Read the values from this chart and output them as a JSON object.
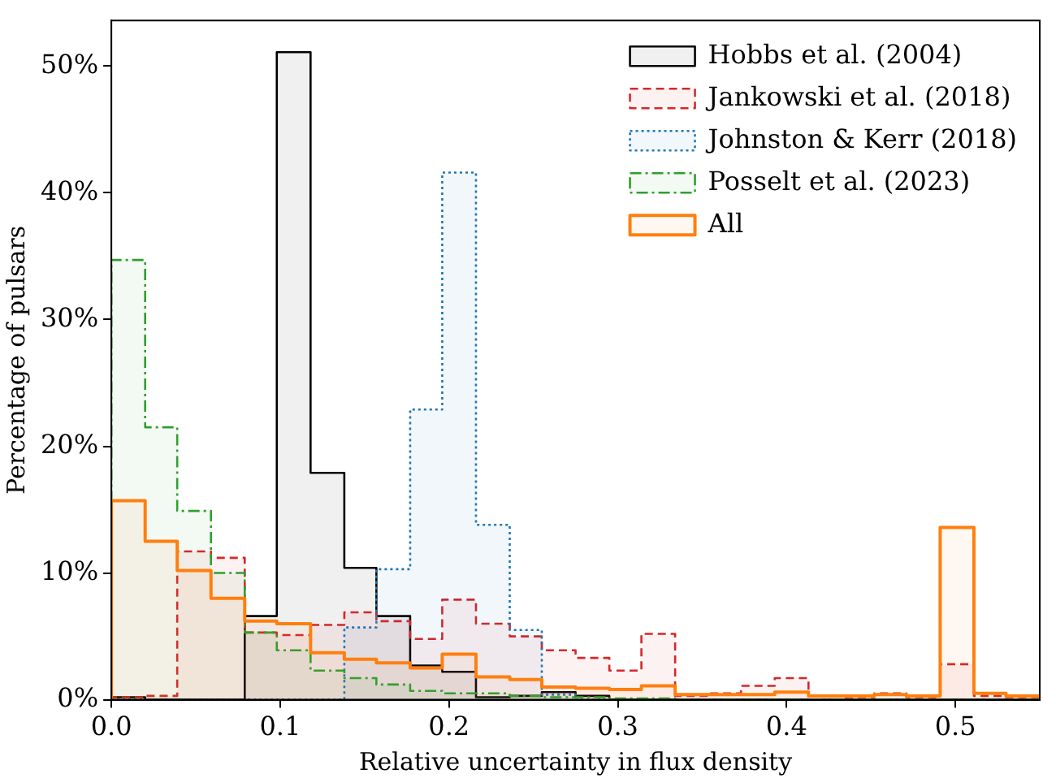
{
  "chart_data": {
    "type": "histogram",
    "xlabel": "Relative uncertainty in flux density",
    "ylabel": "Percentage of pulsars",
    "bins": [
      0,
      0.02,
      0.039,
      0.059,
      0.079,
      0.098,
      0.118,
      0.138,
      0.157,
      0.177,
      0.196,
      0.216,
      0.236,
      0.255,
      0.275,
      0.295,
      0.314,
      0.334,
      0.354,
      0.373,
      0.393,
      0.413,
      0.432,
      0.452,
      0.471,
      0.491,
      0.511,
      0.53,
      0.55
    ],
    "series": [
      {
        "name": "Hobbs et al. (2004)",
        "color": "#000000",
        "line_style": "solid",
        "values": [
          0.2,
          0,
          0,
          0,
          6.6,
          51.1,
          17.9,
          10.4,
          6.6,
          2.7,
          2.2,
          0.2,
          0.3,
          0.6,
          0.3,
          0,
          0,
          0,
          0,
          0,
          0,
          0,
          0,
          0,
          0,
          0,
          0,
          0
        ]
      },
      {
        "name": "Jankowski et al. (2018)",
        "color": "#d62728",
        "line_style": "dashed",
        "values": [
          0.2,
          0.3,
          11.7,
          11.2,
          5.3,
          5.1,
          5.9,
          6.9,
          6.2,
          4.8,
          7.9,
          6.0,
          5.0,
          3.9,
          3.3,
          2.3,
          5.2,
          0.3,
          0.5,
          1.1,
          1.7,
          0.3,
          0.2,
          0.5,
          0.2,
          2.8,
          0.3,
          0.2
        ]
      },
      {
        "name": "Johnston & Kerr (2018)",
        "color": "#1f77b4",
        "line_style": "dotted",
        "values": [
          0,
          0,
          0,
          0,
          0,
          0,
          0,
          5.7,
          10.3,
          22.9,
          41.6,
          13.8,
          5.5,
          0.4,
          0,
          0,
          0,
          0,
          0,
          0,
          0,
          0,
          0,
          0,
          0,
          0,
          0,
          0
        ]
      },
      {
        "name": "Posselt et al. (2023)",
        "color": "#2ca02c",
        "line_style": "dashdot",
        "values": [
          34.7,
          21.5,
          14.9,
          10.0,
          5.3,
          3.9,
          2.3,
          1.7,
          1.2,
          0.7,
          0.5,
          0.5,
          0.3,
          0.2,
          0.2,
          0.1,
          0.1,
          0,
          0,
          0,
          0,
          0,
          0,
          0,
          0,
          0,
          0,
          0
        ]
      },
      {
        "name": "All",
        "color": "#ff7f0e",
        "line_style": "solid",
        "values": [
          15.7,
          12.5,
          10.2,
          8.0,
          6.2,
          6.0,
          3.7,
          3.2,
          2.9,
          2.5,
          3.6,
          1.8,
          1.6,
          1.0,
          0.9,
          0.8,
          1.1,
          0.4,
          0.4,
          0.4,
          0.6,
          0.3,
          0.3,
          0.4,
          0.3,
          13.6,
          0.5,
          0.3
        ]
      }
    ],
    "xlim": [
      0,
      0.55
    ],
    "xticks": [
      {
        "value": 0,
        "label": "0.0"
      },
      0.1,
      0.2,
      0.3,
      0.4,
      0.5
    ],
    "ylim": [
      0,
      53.6
    ],
    "yticks": [
      {
        "value": 0,
        "label": "0%"
      },
      {
        "value": 10,
        "label": "10%"
      },
      {
        "value": 20,
        "label": "20%"
      },
      {
        "value": 30,
        "label": "30%"
      },
      {
        "value": 40,
        "label": "40%"
      },
      {
        "value": 50,
        "label": "50%"
      }
    ],
    "grid": false,
    "legend": "top right"
  }
}
